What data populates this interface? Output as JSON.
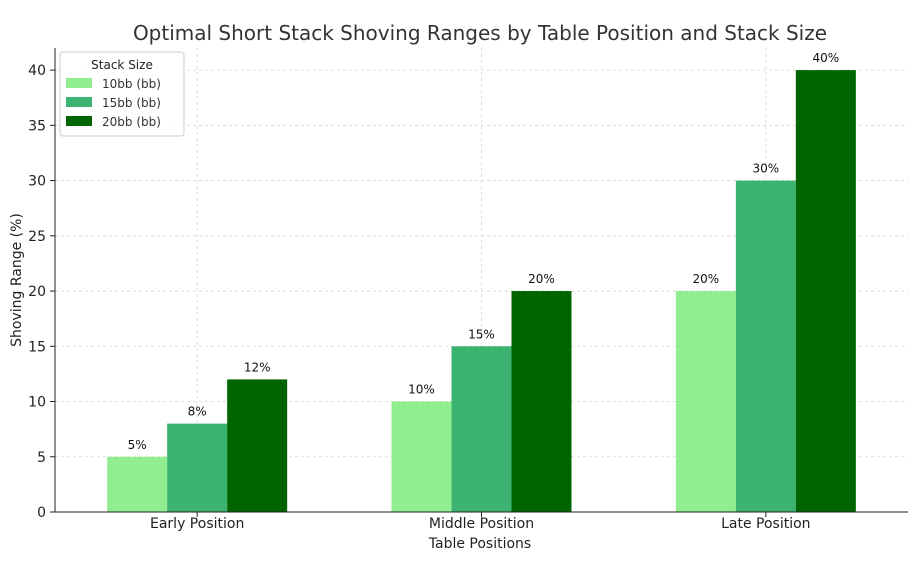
{
  "chart_data": {
    "type": "bar",
    "title": "Optimal Short Stack Shoving Ranges by Table Position and Stack Size",
    "xlabel": "Table Positions",
    "ylabel": "Shoving Range (%)",
    "categories": [
      "Early Position",
      "Middle Position",
      "Late Position"
    ],
    "series": [
      {
        "name": "10bb (bb)",
        "color": "#90ee90",
        "values": [
          5,
          10,
          20
        ],
        "labels": [
          "5%",
          "10%",
          "20%"
        ]
      },
      {
        "name": "15bb (bb)",
        "color": "#3cb371",
        "values": [
          8,
          15,
          30
        ],
        "labels": [
          "8%",
          "15%",
          "30%"
        ]
      },
      {
        "name": "20bb (bb)",
        "color": "#006400",
        "values": [
          12,
          20,
          40
        ],
        "labels": [
          "12%",
          "20%",
          "40%"
        ]
      }
    ],
    "ylim": [
      0,
      42
    ],
    "yticks": [
      0,
      5,
      10,
      15,
      20,
      25,
      30,
      35,
      40
    ],
    "grid": true,
    "legend": {
      "title": "Stack Size",
      "position": "top-left"
    }
  }
}
